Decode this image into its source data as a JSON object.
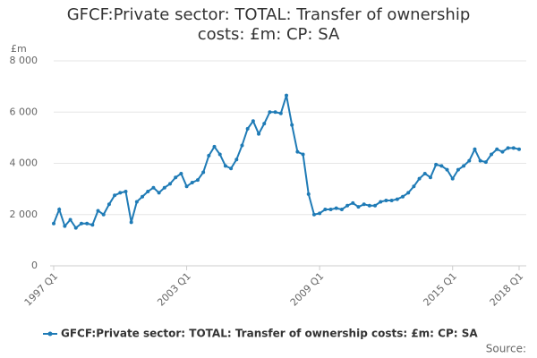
{
  "chart_data": {
    "type": "line",
    "title": "GFCF:Private sector: TOTAL: Transfer of ownership costs: £m: CP: SA",
    "y_unit": "£m",
    "source_label": "Source:",
    "categories": [
      "1997 Q1",
      null,
      null,
      null,
      null,
      null,
      null,
      null,
      null,
      null,
      null,
      null,
      null,
      null,
      null,
      null,
      null,
      null,
      null,
      null,
      null,
      null,
      null,
      null,
      "2003 Q1",
      null,
      null,
      null,
      null,
      null,
      null,
      null,
      null,
      null,
      null,
      null,
      null,
      null,
      null,
      null,
      null,
      null,
      null,
      null,
      null,
      null,
      null,
      null,
      "2009 Q1",
      null,
      null,
      null,
      null,
      null,
      null,
      null,
      null,
      null,
      null,
      null,
      null,
      null,
      null,
      null,
      null,
      null,
      null,
      null,
      null,
      null,
      null,
      null,
      "2015 Q1",
      null,
      null,
      null,
      null,
      null,
      null,
      null,
      null,
      null,
      null,
      null,
      "2018 Q1"
    ],
    "series": [
      {
        "name": "GFCF:Private sector: TOTAL: Transfer of ownership costs: £m: CP: SA",
        "color": "#1f7bb6",
        "values": [
          1650,
          2200,
          1550,
          1800,
          1480,
          1650,
          1650,
          1600,
          2150,
          2000,
          2400,
          2750,
          2850,
          2900,
          1700,
          2500,
          2700,
          2900,
          3050,
          2850,
          3050,
          3200,
          3450,
          3600,
          3100,
          3250,
          3350,
          3650,
          4300,
          4650,
          4350,
          3900,
          3800,
          4150,
          4700,
          5350,
          5650,
          5150,
          5550,
          6000,
          6000,
          5950,
          6650,
          5500,
          4450,
          4350,
          2800,
          2000,
          2050,
          2200,
          2200,
          2250,
          2200,
          2350,
          2450,
          2300,
          2400,
          2350,
          2350,
          2500,
          2550,
          2550,
          2600,
          2700,
          2850,
          3100,
          3400,
          3600,
          3450,
          3950,
          3900,
          3750,
          3400,
          3750,
          3900,
          4100,
          4550,
          4100,
          4050,
          4350,
          4550,
          4450,
          4600,
          4600,
          4550
        ]
      }
    ],
    "ylim": [
      0,
      8000
    ],
    "yticks": [
      0,
      {
        "value": 2000,
        "label": "2 000"
      },
      {
        "value": 4000,
        "label": "4 000"
      },
      {
        "value": 6000,
        "label": "6 000"
      },
      {
        "value": 8000,
        "label": "8 000"
      }
    ],
    "grid": true
  }
}
